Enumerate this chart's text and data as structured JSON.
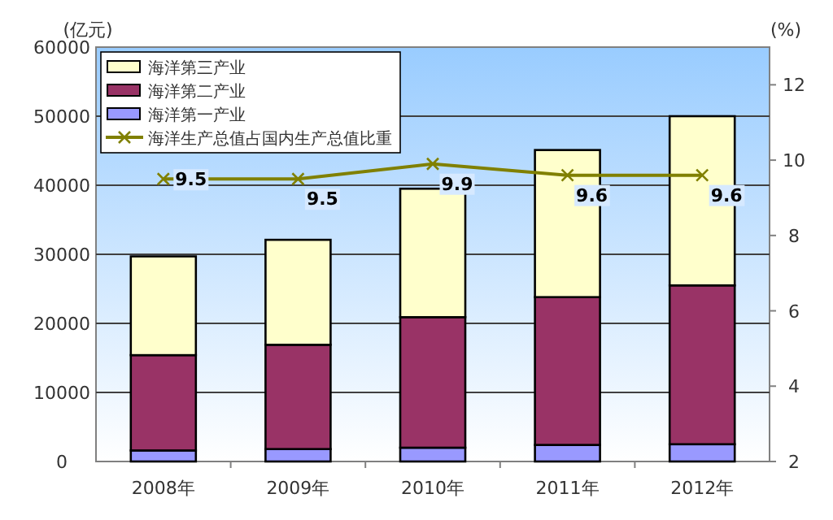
{
  "chart_data": {
    "type": "bar",
    "stacked": true,
    "categories": [
      "2008年",
      "2009年",
      "2010年",
      "2011年",
      "2012年"
    ],
    "series": [
      {
        "name": "海洋第一产业",
        "color": "#9999ff",
        "values": [
          1600,
          1800,
          2000,
          2400,
          2500
        ]
      },
      {
        "name": "海洋第二产业",
        "color": "#993366",
        "values": [
          13800,
          15100,
          18900,
          21400,
          23000
        ]
      },
      {
        "name": "海洋第三产业",
        "color": "#ffffcc",
        "values": [
          14300,
          15200,
          18600,
          21300,
          24500
        ]
      },
      {
        "name": "海洋生产总值占国内生产总值比重",
        "type": "line",
        "axis": "y2",
        "color": "#808000",
        "marker": "cross",
        "values": [
          9.5,
          9.5,
          9.9,
          9.6,
          9.6
        ],
        "value_labels": [
          "9.5",
          "9.5",
          "9.9",
          "9.6",
          "9.6"
        ]
      }
    ],
    "ylim": [
      0,
      60000
    ],
    "yticks": [
      0,
      10000,
      20000,
      30000,
      40000,
      50000,
      60000
    ],
    "y2lim": [
      2,
      13
    ],
    "y2ticks": [
      2,
      4,
      6,
      8,
      10,
      12
    ],
    "ylabel": "(亿元)",
    "y2label": "(%)",
    "grid": "y",
    "legend": "top left"
  }
}
